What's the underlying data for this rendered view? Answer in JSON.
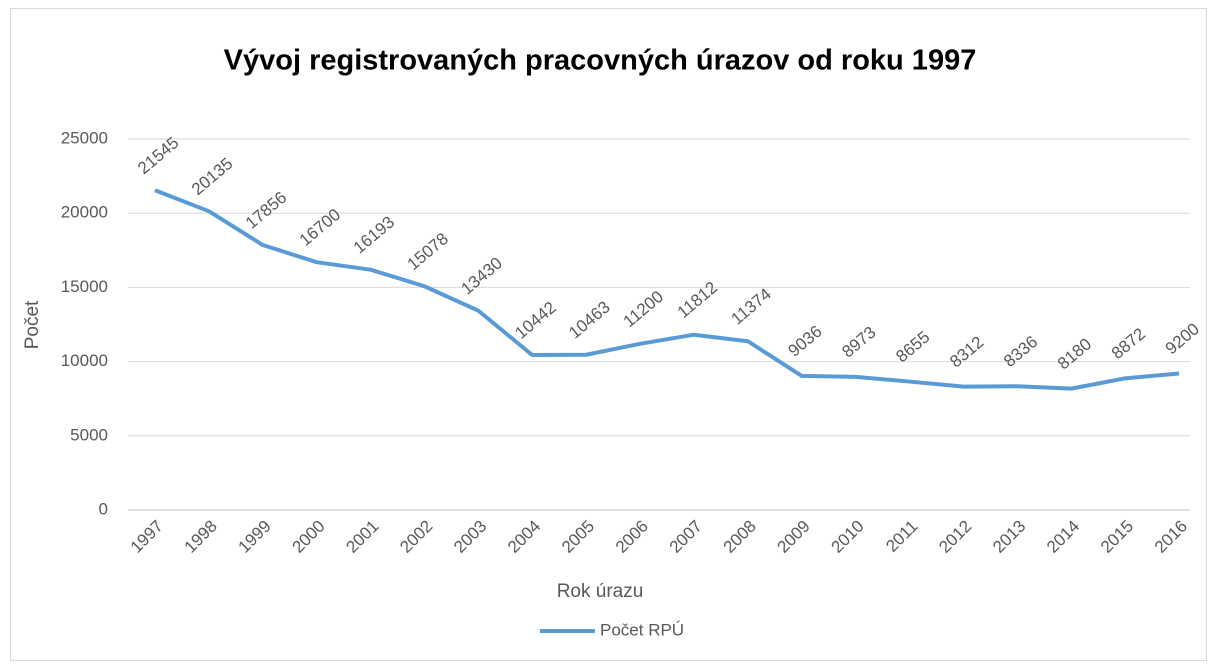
{
  "chart_data": {
    "type": "line",
    "title": "Vývoj registrovaných pracovných úrazov od roku 1997",
    "x_label": "Rok úrazu",
    "y_label": "Počet",
    "categories": [
      "1997",
      "1998",
      "1999",
      "2000",
      "2001",
      "2002",
      "2003",
      "2004",
      "2005",
      "2006",
      "2007",
      "2008",
      "2009",
      "2010",
      "2011",
      "2012",
      "2013",
      "2014",
      "2015",
      "2016"
    ],
    "series": [
      {
        "name": "Počet RPÚ",
        "color": "#5b9bd5",
        "values": [
          21545,
          20135,
          17856,
          16700,
          16193,
          15078,
          13430,
          10442,
          10463,
          11200,
          11812,
          11374,
          9036,
          8973,
          8655,
          8312,
          8336,
          8180,
          8872,
          9200
        ]
      }
    ],
    "ylim": [
      0,
      25000
    ],
    "yticks": [
      0,
      5000,
      10000,
      15000,
      20000,
      25000
    ],
    "grid": true,
    "legend": "bottom"
  }
}
